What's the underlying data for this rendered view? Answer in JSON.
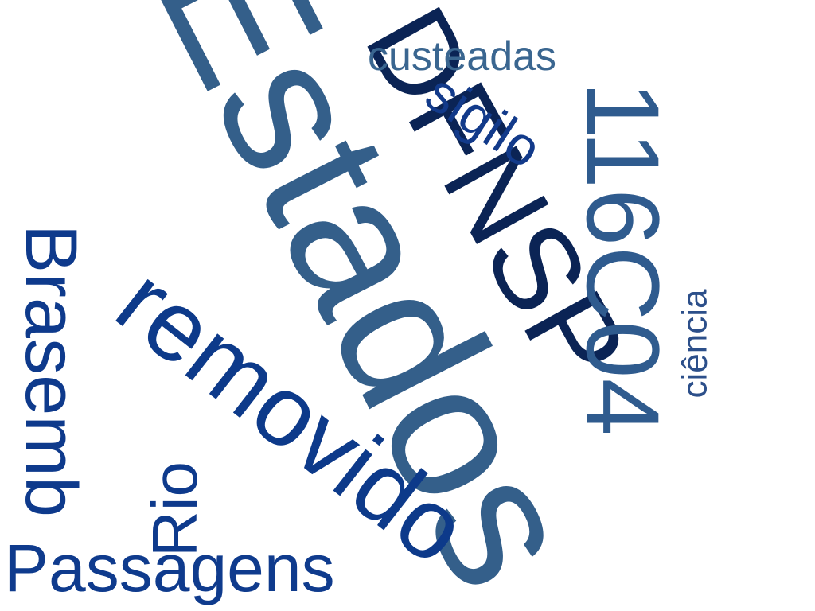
{
  "word_cloud": {
    "words": [
      {
        "key": "estados",
        "text": "Estados",
        "color": "#345f8a"
      },
      {
        "key": "dfnsp",
        "text": "DFNSP",
        "color": "#0b2455"
      },
      {
        "key": "code",
        "text": "116C04",
        "color": "#2f5b8e"
      },
      {
        "key": "removido",
        "text": "removido",
        "color": "#0d3a8a"
      },
      {
        "key": "brasemb",
        "text": "Brasemb",
        "color": "#0e3a8c"
      },
      {
        "key": "passagens",
        "text": "Passagens",
        "color": "#0f3b8d"
      },
      {
        "key": "rio",
        "text": "Rio",
        "color": "#0e3a8c"
      },
      {
        "key": "sigilo",
        "text": "sigilo",
        "color": "#123a8a"
      },
      {
        "key": "custeadas",
        "text": "custeadas",
        "color": "#3a6690"
      },
      {
        "key": "ciencia",
        "text": "ciência",
        "color": "#2c4f8a"
      }
    ]
  }
}
